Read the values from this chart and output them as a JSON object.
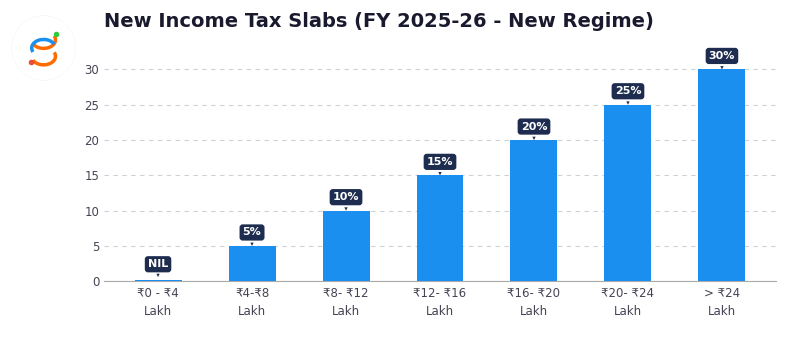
{
  "title": "New Income Tax Slabs (FY 2025-26 - New Regime)",
  "categories": [
    "₹0 - ₹4\nLakh",
    "₹4-₹8\nLakh",
    "₹8- ₹12\nLakh",
    "₹12- ₹16\nLakh",
    "₹16- ₹20\nLakh",
    "₹20- ₹24\nLakh",
    "> ₹24\nLakh"
  ],
  "values": [
    0.2,
    5,
    10,
    15,
    20,
    25,
    30
  ],
  "labels": [
    "NIL",
    "5%",
    "10%",
    "15%",
    "20%",
    "25%",
    "30%"
  ],
  "bar_color": "#1a8fef",
  "label_bg_color": "#1e2d4f",
  "label_text_color": "#ffffff",
  "title_color": "#1a1a2e",
  "axis_color": "#444455",
  "background_color": "#ffffff",
  "ylim": [
    0,
    34
  ],
  "yticks": [
    0,
    5,
    10,
    15,
    20,
    25,
    30
  ],
  "grid_color": "#d0d0d8",
  "title_fontsize": 14,
  "bar_width": 0.5,
  "annotation_fontsize": 8,
  "tick_fontsize": 8.5
}
